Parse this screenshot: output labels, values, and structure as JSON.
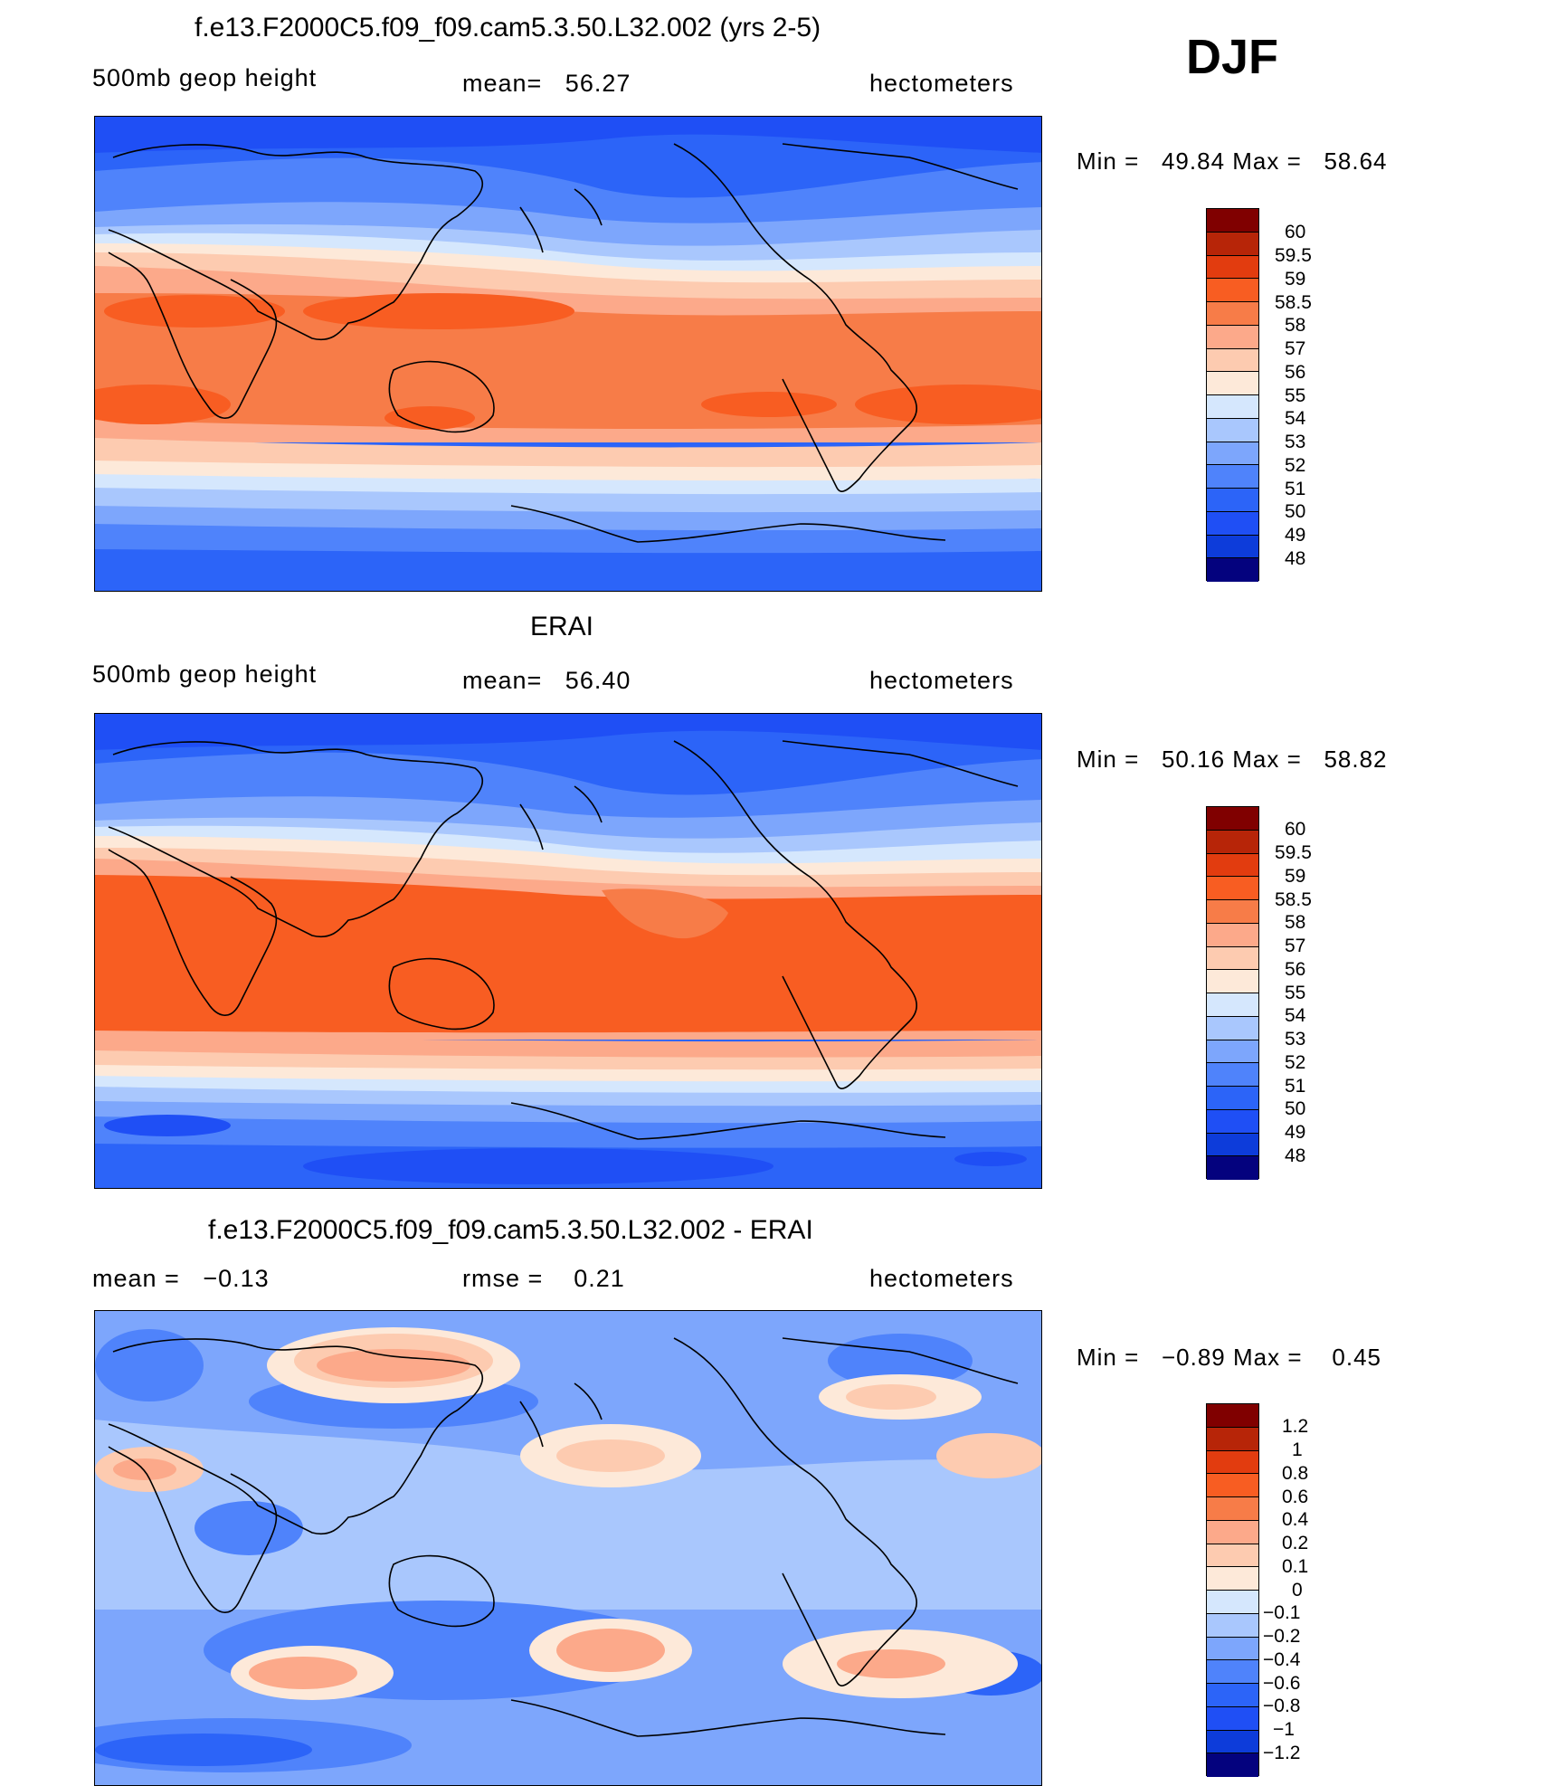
{
  "djf": "DJF",
  "colors": {
    "abs": [
      "#04027e",
      "#0b2bb4",
      "#0d3cda",
      "#1f4ff5",
      "#2c64f8",
      "#4f83fb",
      "#7da6fc",
      "#a9c7fd",
      "#d5e7fd",
      "#fde9d9",
      "#fdcbb0",
      "#fca98a",
      "#f77c48",
      "#f85d22",
      "#e23c0f",
      "#b72508",
      "#800000"
    ],
    "diff": [
      "#04027e",
      "#0b2bb4",
      "#0d3cda",
      "#1f4ff5",
      "#2c64f8",
      "#4f83fb",
      "#7da6fc",
      "#a9c7fd",
      "#d5e7fd",
      "#fde9d9",
      "#fdcbb0",
      "#fca98a",
      "#f77c48",
      "#f85d22",
      "#e23c0f",
      "#b72508",
      "#800000"
    ]
  },
  "panels": [
    {
      "title": "f.e13.F2000C5.f09_f09.cam5.3.50.L32.002 (yrs 2-5)",
      "left_label": "500mb geop height",
      "mid_label": "mean=   56.27",
      "right_label": "hectometers",
      "minmax": "Min =   49.84 Max =   58.64",
      "legend_labels": [
        "60",
        "59.5",
        "59",
        "58.5",
        "58",
        "57",
        "56",
        "55",
        "54",
        "53",
        "52",
        "51",
        "50",
        "49",
        "48"
      ]
    },
    {
      "title": "ERAI",
      "left_label": "500mb geop height",
      "mid_label": "mean=   56.40",
      "right_label": "hectometers",
      "minmax": "Min =   50.16 Max =   58.82",
      "legend_labels": [
        "60",
        "59.5",
        "59",
        "58.5",
        "58",
        "57",
        "56",
        "55",
        "54",
        "53",
        "52",
        "51",
        "50",
        "49",
        "48"
      ]
    },
    {
      "title": "f.e13.F2000C5.f09_f09.cam5.3.50.L32.002 - ERAI",
      "left_label": "mean =   −0.13",
      "mid_label": "rmse =    0.21",
      "right_label": "hectometers",
      "minmax": "Min =   −0.89 Max =    0.45",
      "legend_labels": [
        "1.2",
        "1",
        "0.8",
        "0.6",
        "0.4",
        "0.2",
        "0.1",
        "0",
        "−0.1",
        "−0.2",
        "−0.4",
        "−0.6",
        "−0.8",
        "−1",
        "−1.2"
      ]
    }
  ]
}
